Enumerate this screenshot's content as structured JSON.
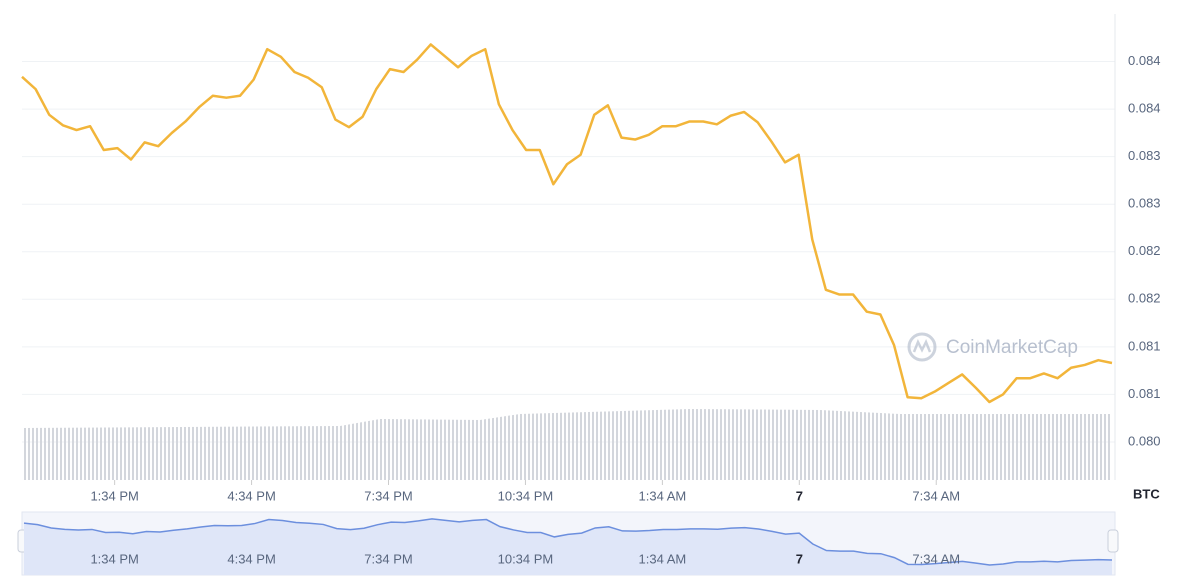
{
  "chart_data": {
    "type": "line",
    "values": [
      0.08384,
      0.08371,
      0.08344,
      0.08333,
      0.08328,
      0.08332,
      0.08307,
      0.08309,
      0.08297,
      0.08315,
      0.08311,
      0.08325,
      0.08337,
      0.08352,
      0.08364,
      0.08362,
      0.08364,
      0.08381,
      0.08413,
      0.08405,
      0.08389,
      0.08383,
      0.08373,
      0.08339,
      0.08331,
      0.08342,
      0.08371,
      0.08392,
      0.08389,
      0.08402,
      0.08418,
      0.08406,
      0.08394,
      0.08406,
      0.08413,
      0.08355,
      0.08328,
      0.08307,
      0.08307,
      0.08271,
      0.08292,
      0.08302,
      0.08344,
      0.08354,
      0.0832,
      0.08318,
      0.08323,
      0.08332,
      0.08332,
      0.08337,
      0.08337,
      0.08334,
      0.08343,
      0.08347,
      0.08336,
      0.08316,
      0.08294,
      0.08302,
      0.08213,
      0.0816,
      0.08155,
      0.08155,
      0.08137,
      0.08134,
      0.08102,
      0.08047,
      0.08046,
      0.08053,
      0.08062,
      0.08071,
      0.08057,
      0.08042,
      0.0805,
      0.08067,
      0.08067,
      0.08072,
      0.08067,
      0.08078,
      0.08081,
      0.08086,
      0.08083
    ],
    "color": "#f2b53a",
    "xlim": [
      0,
      80
    ],
    "xticks": [
      {
        "value": 6.8,
        "label": "1:34 PM"
      },
      {
        "value": 16.85,
        "label": "4:34 PM"
      },
      {
        "value": 26.9,
        "label": "7:34 PM"
      },
      {
        "value": 36.95,
        "label": "10:34 PM"
      },
      {
        "value": 47,
        "label": "1:34 AM"
      },
      {
        "value": 57.05,
        "label": "7"
      },
      {
        "value": 67.1,
        "label": "7:34 AM"
      }
    ],
    "ylim": [
      0.0796,
      0.0845
    ],
    "yticks": [
      0.084,
      {
        "value": 0.0835,
        "label": "0.084"
      },
      0.083,
      {
        "value": 0.0825,
        "label": "0.083"
      },
      0.082,
      {
        "value": 0.0815,
        "label": "0.082"
      },
      0.081,
      {
        "value": 0.0805,
        "label": "0.081"
      },
      {
        "value": 0.08,
        "label": "0.080"
      }
    ],
    "y_unit": "BTC",
    "watermark": "CoinMarketCap",
    "grid": true
  }
}
